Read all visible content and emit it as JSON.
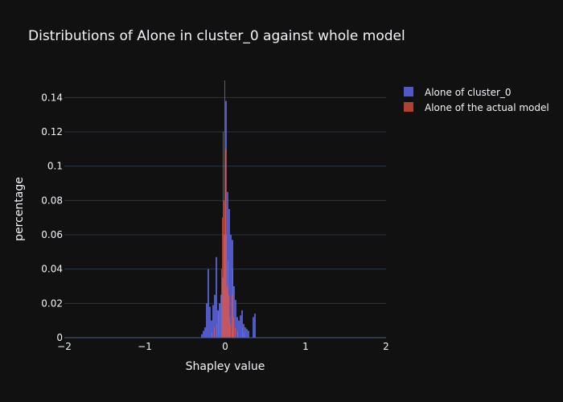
{
  "chart_data": {
    "type": "bar",
    "title": "Distributions of Alone in cluster_0 against whole model",
    "xlabel": "Shapley value",
    "ylabel": "percentage",
    "xlim": [
      -2,
      2
    ],
    "ylim": [
      0,
      0.15
    ],
    "xticks": [
      -2,
      -1,
      0,
      1,
      2
    ],
    "xtick_labels": [
      "−2",
      "−1",
      "0",
      "1",
      "2"
    ],
    "yticks": [
      0,
      0.02,
      0.04,
      0.06,
      0.08,
      0.1,
      0.12,
      0.14
    ],
    "ytick_labels": [
      "0",
      "0.02",
      "0.04",
      "0.06",
      "0.08",
      "0.1",
      "0.12",
      "0.14"
    ],
    "grid": true,
    "barmode": "overlay",
    "legend_position": "top-right",
    "series": [
      {
        "name": "Alone of cluster_0",
        "color": "#636efa",
        "bin_width": 0.02,
        "bins": [
          {
            "x": -0.29,
            "y": 0.002
          },
          {
            "x": -0.27,
            "y": 0.004
          },
          {
            "x": -0.25,
            "y": 0.006
          },
          {
            "x": -0.23,
            "y": 0.02
          },
          {
            "x": -0.21,
            "y": 0.04
          },
          {
            "x": -0.19,
            "y": 0.018
          },
          {
            "x": -0.17,
            "y": 0.01
          },
          {
            "x": -0.15,
            "y": 0.019
          },
          {
            "x": -0.13,
            "y": 0.025
          },
          {
            "x": -0.11,
            "y": 0.047
          },
          {
            "x": -0.09,
            "y": 0.016
          },
          {
            "x": -0.07,
            "y": 0.02
          },
          {
            "x": -0.05,
            "y": 0.025
          },
          {
            "x": -0.03,
            "y": 0.035
          },
          {
            "x": -0.01,
            "y": 0.06
          },
          {
            "x": 0.01,
            "y": 0.138
          },
          {
            "x": 0.03,
            "y": 0.085
          },
          {
            "x": 0.05,
            "y": 0.075
          },
          {
            "x": 0.07,
            "y": 0.06
          },
          {
            "x": 0.09,
            "y": 0.057
          },
          {
            "x": 0.11,
            "y": 0.03
          },
          {
            "x": 0.13,
            "y": 0.022
          },
          {
            "x": 0.15,
            "y": 0.012
          },
          {
            "x": 0.17,
            "y": 0.01
          },
          {
            "x": 0.19,
            "y": 0.013
          },
          {
            "x": 0.21,
            "y": 0.016
          },
          {
            "x": 0.23,
            "y": 0.008
          },
          {
            "x": 0.25,
            "y": 0.006
          },
          {
            "x": 0.27,
            "y": 0.005
          },
          {
            "x": 0.29,
            "y": 0.004
          },
          {
            "x": 0.35,
            "y": 0.012
          },
          {
            "x": 0.37,
            "y": 0.014
          }
        ]
      },
      {
        "name": "Alone of the actual model",
        "color": "#ef553b",
        "bin_width": 0.01,
        "bins": [
          {
            "x": -0.165,
            "y": 0.003
          },
          {
            "x": -0.135,
            "y": 0.006
          },
          {
            "x": -0.105,
            "y": 0.008
          },
          {
            "x": -0.085,
            "y": 0.015
          },
          {
            "x": -0.065,
            "y": 0.02
          },
          {
            "x": -0.045,
            "y": 0.04
          },
          {
            "x": -0.035,
            "y": 0.07
          },
          {
            "x": -0.025,
            "y": 0.12
          },
          {
            "x": -0.015,
            "y": 0.08
          },
          {
            "x": -0.005,
            "y": 0.15
          },
          {
            "x": 0.005,
            "y": 0.11
          },
          {
            "x": 0.015,
            "y": 0.06
          },
          {
            "x": 0.025,
            "y": 0.03
          },
          {
            "x": 0.035,
            "y": 0.045
          },
          {
            "x": 0.045,
            "y": 0.025
          },
          {
            "x": 0.055,
            "y": 0.012
          },
          {
            "x": 0.065,
            "y": 0.008
          },
          {
            "x": 0.085,
            "y": 0.025
          },
          {
            "x": 0.095,
            "y": 0.04
          },
          {
            "x": 0.105,
            "y": 0.012
          },
          {
            "x": 0.125,
            "y": 0.006
          },
          {
            "x": 0.155,
            "y": 0.004
          },
          {
            "x": 0.215,
            "y": 0.006
          },
          {
            "x": 0.235,
            "y": 0.003
          }
        ]
      }
    ]
  }
}
